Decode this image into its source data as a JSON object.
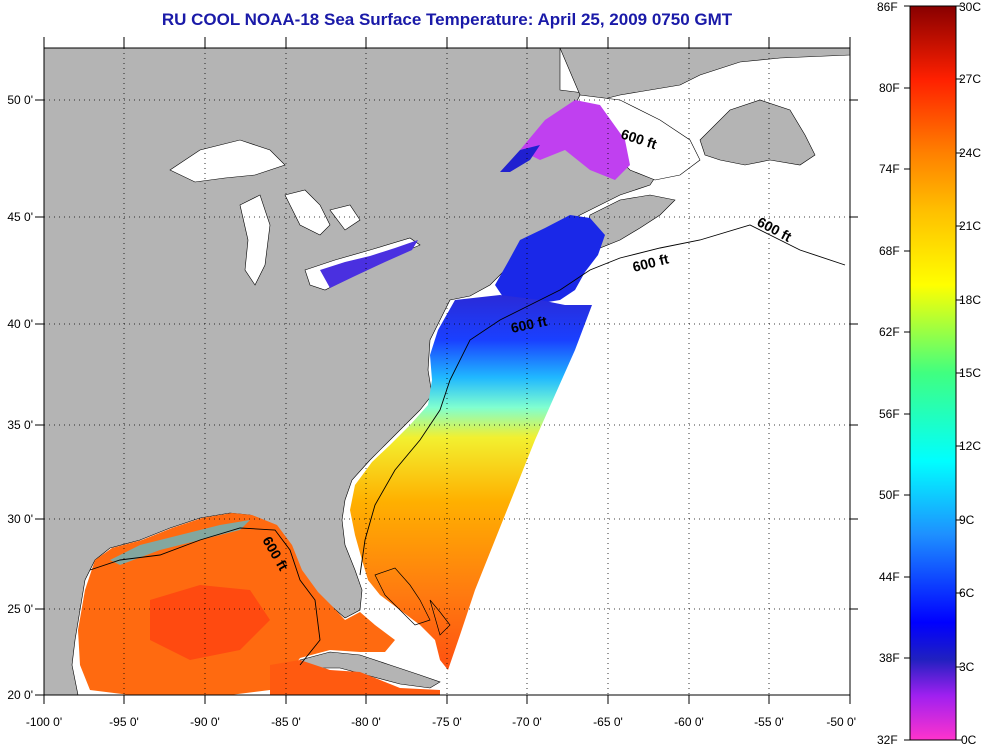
{
  "title": "RU COOL  NOAA-18  Sea Surface Temperature:  April 25, 2009 0750 GMT",
  "map": {
    "lon_range": [
      -100,
      -50
    ],
    "lat_range": [
      20,
      52.5
    ],
    "lon_ticks": [
      "-100 0'",
      "-95 0'",
      "-90 0'",
      "-85 0'",
      "-80 0'",
      "-75 0'",
      "-70 0'",
      "-65 0'",
      "-60 0'",
      "-55 0'",
      "-50 0'"
    ],
    "lat_ticks": [
      "50 0'",
      "45 0'",
      "40 0'",
      "35 0'",
      "30 0'",
      "25 0'",
      "20 0'"
    ],
    "land_color": "#b4b4b4",
    "water_color": "#ffffff",
    "contour_label": "600 ft",
    "grid": "dotted"
  },
  "colorbar": {
    "fahrenheit": [
      "86F",
      "80F",
      "74F",
      "68F",
      "62F",
      "56F",
      "50F",
      "44F",
      "38F",
      "32F"
    ],
    "celsius": [
      "30C",
      "27C",
      "24C",
      "21C",
      "18C",
      "15C",
      "12C",
      "9C",
      "6C",
      "3C",
      "0C"
    ],
    "range_c": [
      0,
      30
    ],
    "range_f": [
      32,
      86
    ]
  }
}
